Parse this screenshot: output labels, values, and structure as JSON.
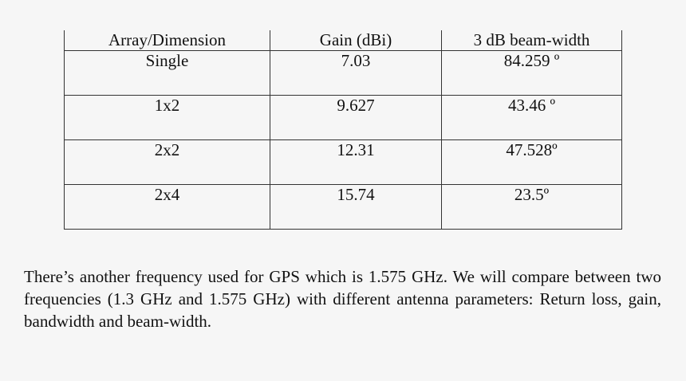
{
  "table": {
    "header": [
      "Array/Dimension",
      "Gain (dBi)",
      "3 dB beam-width"
    ],
    "rows": [
      [
        "Single",
        "7.03",
        "84.259 º"
      ],
      [
        "1x2",
        "9.627",
        "43.46 º"
      ],
      [
        "2x2",
        "12.31",
        "47.528º"
      ],
      [
        "2x4",
        "15.74",
        "23.5º"
      ]
    ]
  },
  "paragraph": "There’s another frequency used for GPS which is 1.575 GHz. We will compare between two frequencies (1.3 GHz and 1.575 GHz) with different antenna parameters: Return loss, gain, bandwidth and beam-width."
}
